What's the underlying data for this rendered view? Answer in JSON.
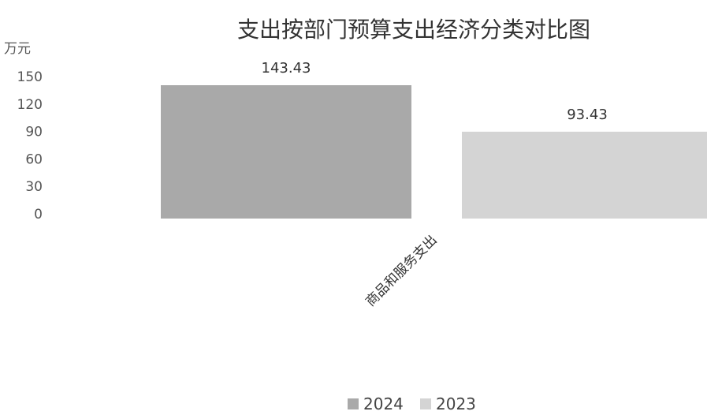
{
  "chart_data": {
    "type": "bar",
    "title": "支出按部门预算支出经济分类对比图",
    "ylabel": "万元",
    "xlabel": "",
    "ylim": [
      0,
      150
    ],
    "yticks": [
      "150",
      "120",
      "90",
      "60",
      "30",
      "0"
    ],
    "categories": [
      "商品和服务支出"
    ],
    "series": [
      {
        "name": "2024",
        "values": [
          143.43
        ],
        "color": "#a9a9a9"
      },
      {
        "name": "2023",
        "values": [
          93.43
        ],
        "color": "#d4d4d4"
      }
    ],
    "data_labels": [
      "143.43",
      "93.43"
    ],
    "legend_position": "bottom-center",
    "grid": false
  }
}
